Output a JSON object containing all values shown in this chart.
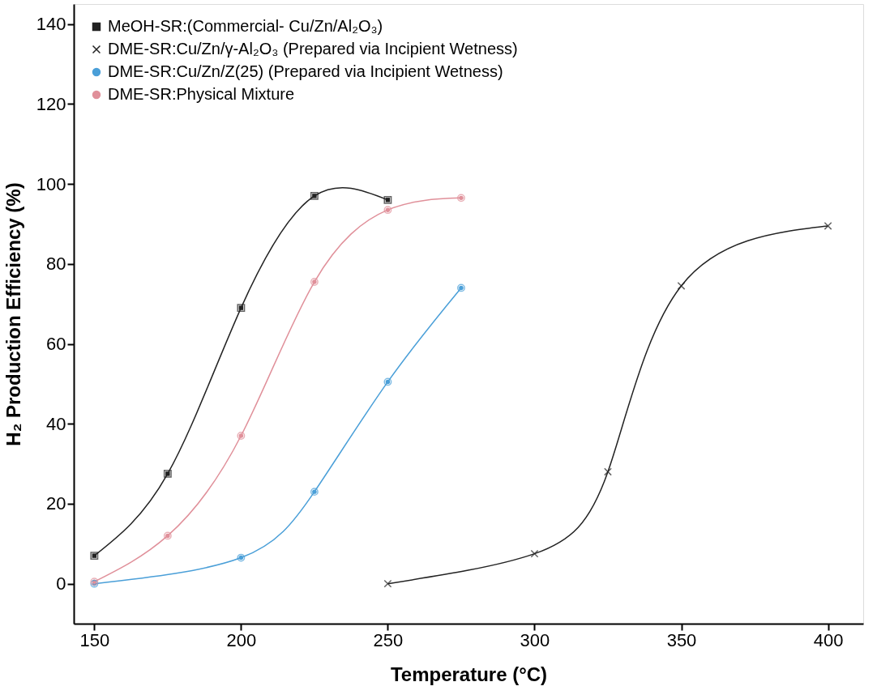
{
  "chart_data": {
    "type": "line",
    "xlabel": "Temperature (°C)",
    "ylabel": "H₂ Production Efficiency (%)",
    "xlim": [
      143,
      412
    ],
    "ylim": [
      -10,
      145
    ],
    "xticks": [
      150,
      200,
      250,
      300,
      350,
      400
    ],
    "yticks": [
      0,
      20,
      40,
      60,
      80,
      100,
      120,
      140
    ],
    "grid": false,
    "legend": "top left",
    "line_style": "solid",
    "series": [
      {
        "name": "MeOH-SR:(Commercial- Cu/Zn/Al₂O₃)",
        "color": "#222222",
        "marker": "square",
        "x": [
          150,
          175,
          200,
          225,
          250
        ],
        "values": [
          7,
          27.5,
          69,
          97,
          96
        ]
      },
      {
        "name": "DME-SR:Cu/Zn/γ-Al₂O₃ (Prepared via Incipient Wetness)",
        "color": "#222222",
        "marker": "cross",
        "x": [
          250,
          300,
          325,
          350,
          400
        ],
        "values": [
          0,
          7.5,
          28,
          74.5,
          89.5
        ]
      },
      {
        "name": "DME-SR:Cu/Zn/Z(25) (Prepared via Incipient Wetness)",
        "color": "#4a9fd8",
        "marker": "circle",
        "x": [
          150,
          200,
          225,
          250,
          275
        ],
        "values": [
          0,
          6.5,
          23,
          50.5,
          74
        ]
      },
      {
        "name": "DME-SR:Physical Mixture",
        "color": "#e0909a",
        "marker": "circle",
        "x": [
          150,
          175,
          200,
          225,
          250,
          275
        ],
        "values": [
          0.5,
          12,
          37,
          75.5,
          93.5,
          96.5
        ]
      }
    ]
  }
}
